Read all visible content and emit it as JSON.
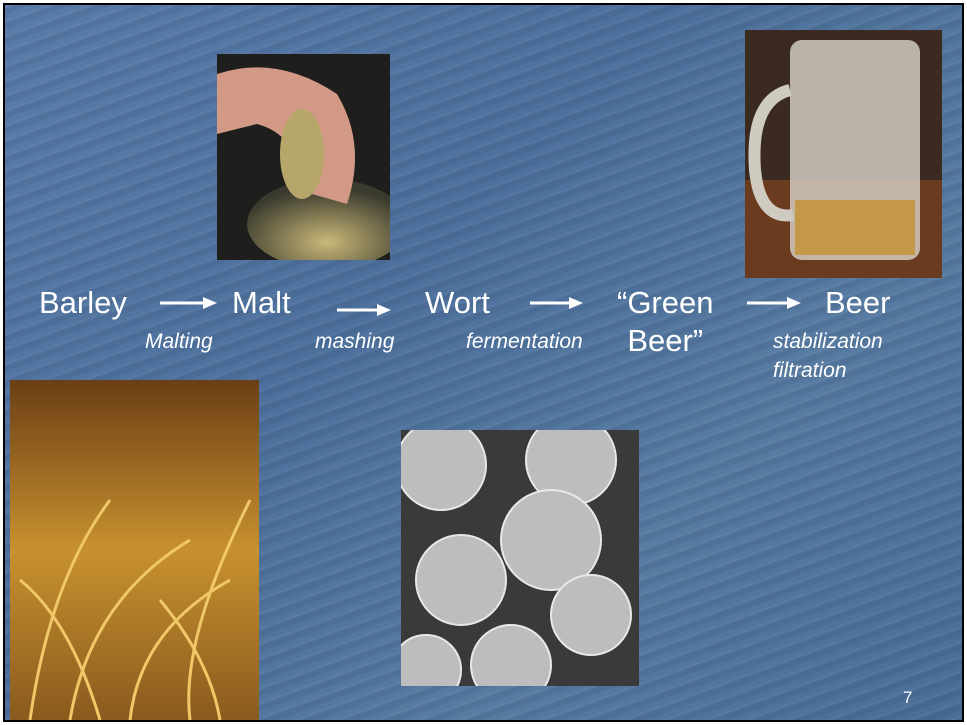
{
  "slide": {
    "stages": [
      {
        "lines": [
          "Barley"
        ]
      },
      {
        "lines": [
          "Malt"
        ]
      },
      {
        "lines": [
          "Wort"
        ]
      },
      {
        "lines": [
          "“Green",
          "Beer”"
        ]
      },
      {
        "lines": [
          "Beer"
        ]
      }
    ],
    "processes": [
      {
        "lines": [
          "Malting"
        ]
      },
      {
        "lines": [
          "mashing"
        ]
      },
      {
        "lines": [
          "fermentation"
        ]
      },
      {
        "lines": [
          "stabilization",
          "filtration"
        ]
      }
    ],
    "page_number": "7"
  }
}
